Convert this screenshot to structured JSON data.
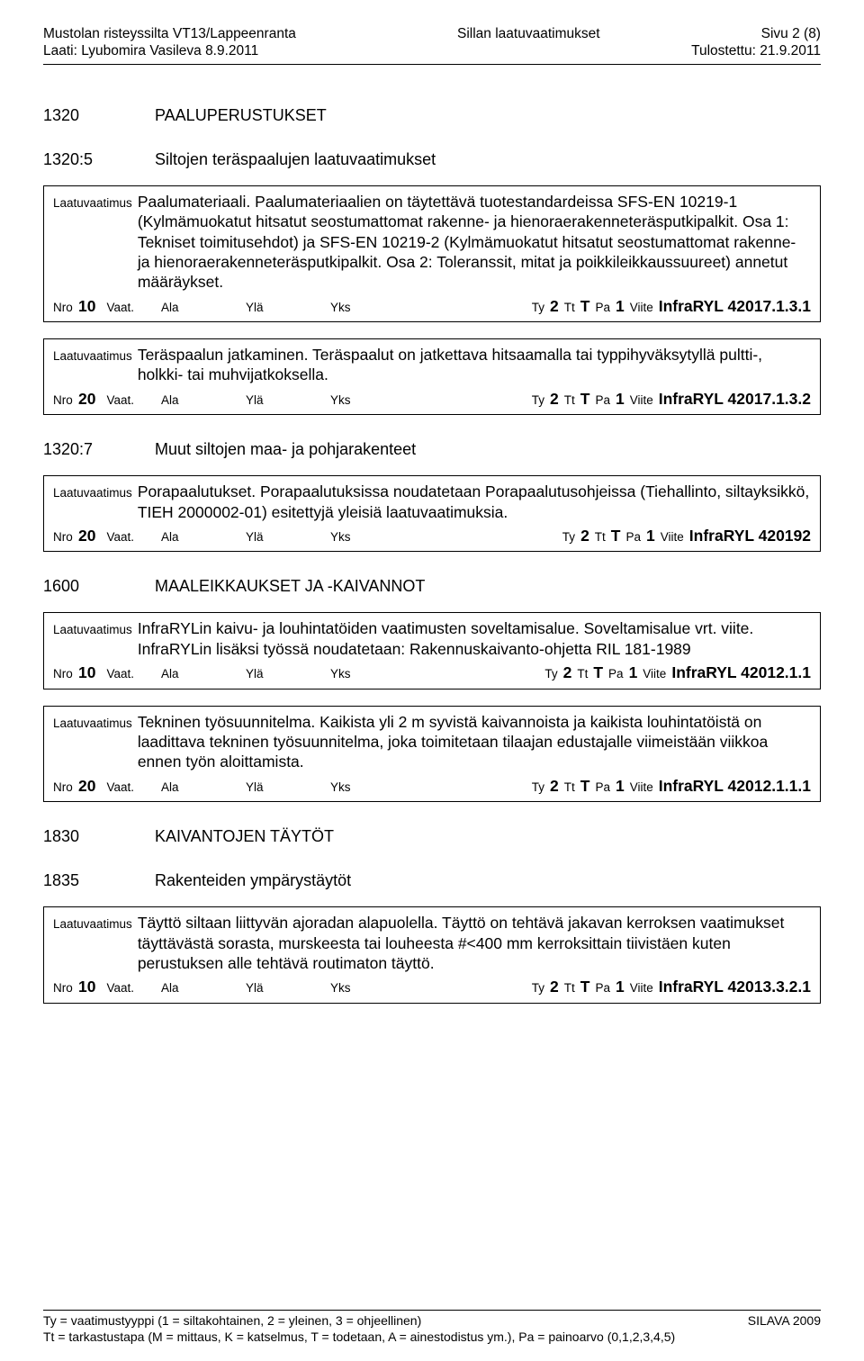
{
  "header": {
    "left1": "Mustolan risteyssilta  VT13/Lappeenranta",
    "center1": "Sillan laatuvaatimukset",
    "right1": "Sivu 2 (8)",
    "left2": "Laati: Lyubomira Vasileva 8.9.2011",
    "right2": "Tulostettu: 21.9.2011"
  },
  "sections": [
    {
      "num": "1320",
      "title": "PAALUPERUSTUKSET",
      "gap": "big-gap"
    },
    {
      "num": "1320:5",
      "title": "Siltojen teräspaalujen laatuvaatimukset",
      "gap": "med-gap"
    }
  ],
  "entries1": [
    {
      "text": "Paalumateriaali. Paalumateriaalien on täytettävä tuotestandardeissa SFS-EN 10219-1 (Kylmämuokatut hitsatut seostumattomat rakenne- ja hienoraerakenneteräsputkipalkit. Osa 1: Tekniset toimitusehdot) ja  SFS-EN 10219-2 (Kylmämuokatut hitsatut seostumattomat rakenne- ja hienoraerakenneteräsputkipalkit. Osa 2: Toleranssit, mitat ja poikkileikkaussuureet) annetut määräykset.",
      "nro": "10",
      "ty": "2",
      "tt": "T",
      "pa": "1",
      "viite": "InfraRYL 42017.1.3.1"
    },
    {
      "text": "Teräspaalun jatkaminen. Teräspaalut on jatkettava hitsaamalla tai typpihyväksytyllä pultti-, holkki- tai muhvijatkoksella.",
      "nro": "20",
      "ty": "2",
      "tt": "T",
      "pa": "1",
      "viite": "InfraRYL 42017.1.3.2"
    }
  ],
  "sections2": [
    {
      "num": "1320:7",
      "title": "Muut siltojen maa- ja pohjarakenteet",
      "gap": "med-gap"
    }
  ],
  "entries2": [
    {
      "text": "Porapaalutukset. Porapaalutuksissa noudatetaan Porapaalutusohjeissa (Tiehallinto, siltayksikkö, TIEH 2000002-01) esitettyjä yleisiä laatuvaatimuksia.",
      "nro": "20",
      "ty": "2",
      "tt": "T",
      "pa": "1",
      "viite": "InfraRYL 420192"
    }
  ],
  "sections3": [
    {
      "num": "1600",
      "title": "MAALEIKKAUKSET JA -KAIVANNOT",
      "gap": "med-gap"
    }
  ],
  "entries3": [
    {
      "text": "InfraRYLin kaivu- ja louhintatöiden vaatimusten soveltamisalue. Soveltamisalue vrt. viite. InfraRYLin lisäksi työssä noudatetaan: Rakennuskaivanto-ohjetta RIL 181-1989",
      "nro": "10",
      "ty": "2",
      "tt": "T",
      "pa": "1",
      "viite": "InfraRYL 42012.1.1"
    },
    {
      "text": "Tekninen työsuunnitelma. Kaikista yli 2 m syvistä kaivannoista ja kaikista louhintatöistä on laadittava tekninen työsuunnitelma, joka toimitetaan tilaajan edustajalle viimeistään viikkoa ennen työn aloittamista.",
      "nro": "20",
      "ty": "2",
      "tt": "T",
      "pa": "1",
      "viite": "InfraRYL 42012.1.1.1"
    }
  ],
  "sections4": [
    {
      "num": "1830",
      "title": "KAIVANTOJEN TÄYTÖT",
      "gap": "med-gap"
    },
    {
      "num": "1835",
      "title": "Rakenteiden ympärystäytöt",
      "gap": "med-gap"
    }
  ],
  "entries4": [
    {
      "text": "Täyttö siltaan liittyvän ajoradan alapuolella. Täyttö on tehtävä jakavan kerroksen vaatimukset täyttävästä sorasta, murskeesta tai louheesta #<400 mm kerroksittain tiivistäen  kuten perustuksen alle tehtävä routimaton täyttö.",
      "nro": "10",
      "ty": "2",
      "tt": "T",
      "pa": "1",
      "viite": "InfraRYL 42013.3.2.1"
    }
  ],
  "labels": {
    "laatu": "Laatuvaatimus",
    "nro": "Nro",
    "vaat": "Vaat.",
    "ala": "Ala",
    "yla": "Ylä",
    "yks": "Yks",
    "ty": "Ty",
    "tt": "Tt",
    "pa": "Pa",
    "viite": "Viite"
  },
  "footer": {
    "left1": "Ty = vaatimustyyppi (1 = siltakohtainen, 2 = yleinen, 3 = ohjeellinen)",
    "right1": "SILAVA 2009",
    "left2": "Tt = tarkastustapa (M = mittaus, K = katselmus, T = todetaan, A = ainestodistus ym.), Pa = painoarvo (0,1,2,3,4,5)"
  }
}
